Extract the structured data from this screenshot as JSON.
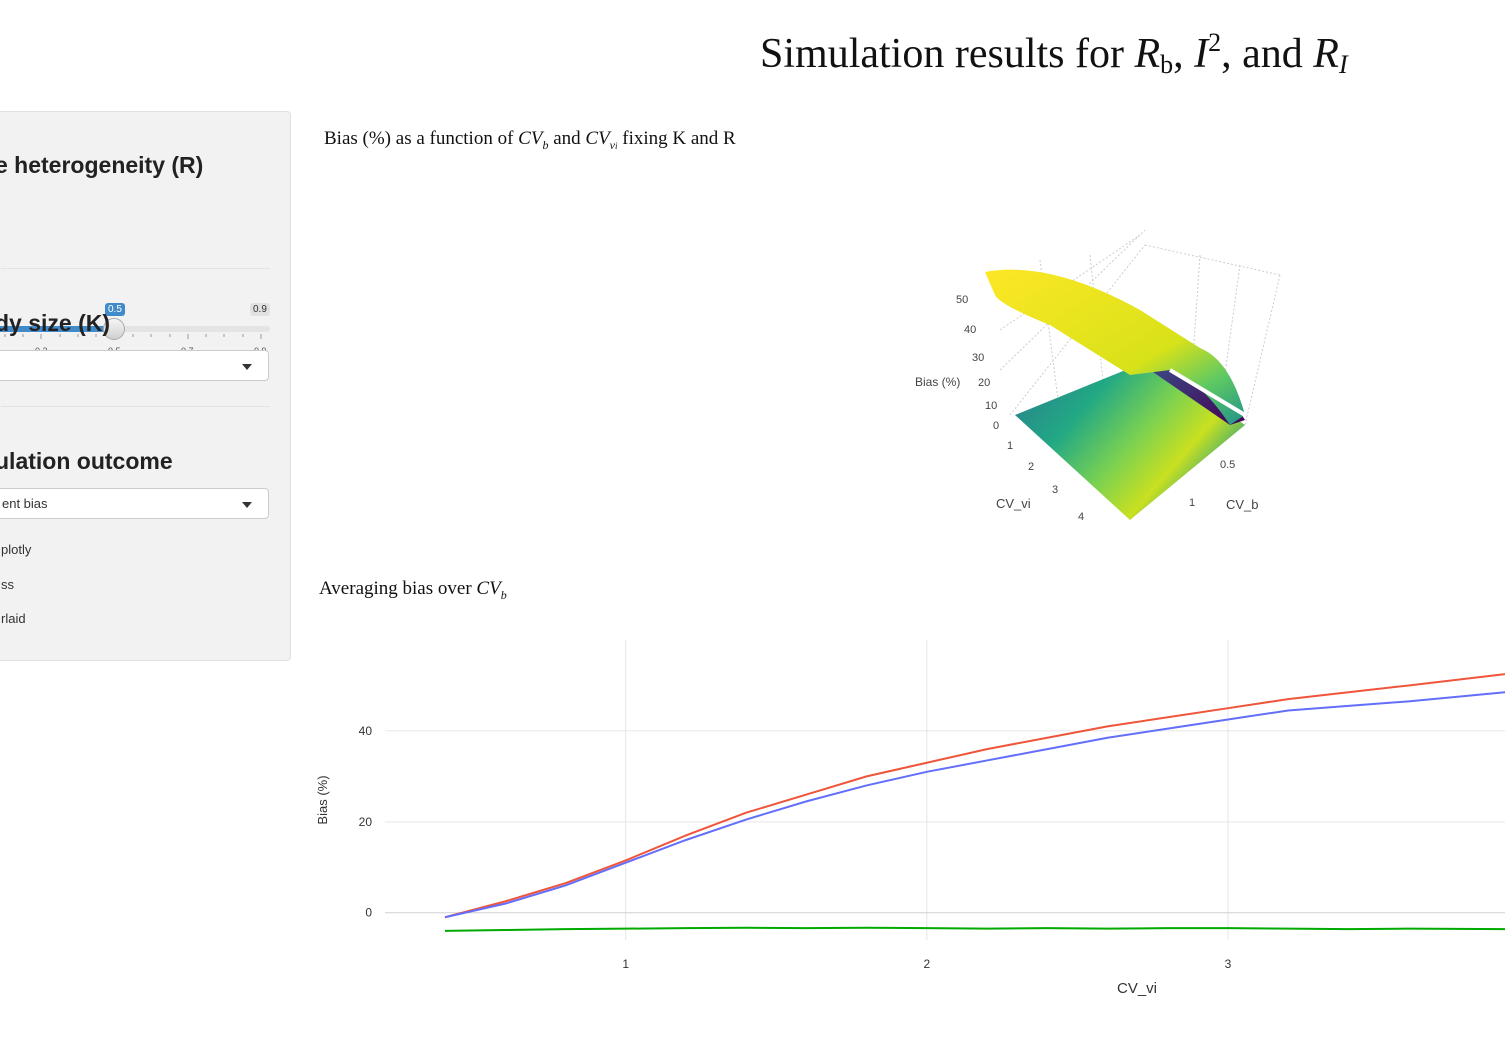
{
  "title": {
    "prefix": "Simulation results for ",
    "r": "R",
    "b": "b",
    "sep1": ", ",
    "i": "I",
    "sq": "2",
    "sep2": ",  and ",
    "ri_r": "R",
    "ri_i": "I"
  },
  "sidebar": {
    "heterogeneity_label": "e heterogeneity (R)",
    "slider": {
      "value": 0.5,
      "value_label": "0.5",
      "max_label": "0.9",
      "ticks": [
        "0.3",
        "0.5",
        "0.7",
        "0.9"
      ]
    },
    "study_size_label": "dy size (K)",
    "study_size_value": "",
    "outcome_label": "ulation outcome",
    "outcome_value": "ent bias",
    "options": [
      "plotly",
      "ss",
      "rlaid"
    ]
  },
  "surface_section": {
    "heading_pre": "Bias (%) as a function of ",
    "cv": "CV",
    "b": "b",
    "and": " and ",
    "vi": "v",
    "vi_sub": "i",
    "post": " fixing K and R",
    "zlabel": "Bias (%)",
    "ylabel": "CV_vi",
    "xlabel": "CV_b",
    "z_ticks": [
      "50",
      "40",
      "30",
      "20",
      "10",
      "0"
    ],
    "y_ticks": [
      "1",
      "2",
      "3",
      "4"
    ],
    "x_ticks": [
      "0.5",
      "1"
    ]
  },
  "avg_section": {
    "heading_pre": "Averaging bias over ",
    "cv": "CV",
    "b": "b"
  },
  "chart_data": {
    "type": "line",
    "xlabel": "CV_vi",
    "ylabel": "Bias (%)",
    "x_ticks": [
      1,
      2,
      3
    ],
    "y_ticks": [
      0,
      20,
      40
    ],
    "xlim": [
      0.4,
      3.92
    ],
    "ylim": [
      -6,
      60
    ],
    "grid": true,
    "series": [
      {
        "color": "#ef553b",
        "x": [
          0.4,
          0.6,
          0.8,
          1.0,
          1.2,
          1.4,
          1.6,
          1.8,
          2.0,
          2.2,
          2.4,
          2.6,
          2.8,
          3.0,
          3.2,
          3.4,
          3.6,
          3.92
        ],
        "values": [
          -1,
          2.5,
          6.5,
          11.5,
          17,
          22,
          26,
          30,
          33,
          36,
          38.5,
          41,
          43,
          45,
          47,
          48.5,
          50,
          52.5
        ]
      },
      {
        "color": "#636efa",
        "x": [
          0.4,
          0.6,
          0.8,
          1.0,
          1.2,
          1.4,
          1.6,
          1.8,
          2.0,
          2.2,
          2.4,
          2.6,
          2.8,
          3.0,
          3.2,
          3.4,
          3.6,
          3.92
        ],
        "values": [
          -1,
          2,
          6,
          11,
          16,
          20.5,
          24.5,
          28,
          31,
          33.5,
          36,
          38.5,
          40.5,
          42.5,
          44.5,
          45.5,
          46.5,
          48.5
        ]
      },
      {
        "color": "#00aa00",
        "x": [
          0.4,
          0.6,
          0.8,
          1.0,
          1.2,
          1.4,
          1.6,
          1.8,
          2.0,
          2.2,
          2.4,
          2.6,
          2.8,
          3.0,
          3.2,
          3.4,
          3.6,
          3.92
        ],
        "values": [
          -4,
          -3.8,
          -3.6,
          -3.5,
          -3.4,
          -3.3,
          -3.4,
          -3.3,
          -3.4,
          -3.5,
          -3.4,
          -3.5,
          -3.4,
          -3.4,
          -3.5,
          -3.6,
          -3.5,
          -3.6
        ]
      }
    ]
  }
}
